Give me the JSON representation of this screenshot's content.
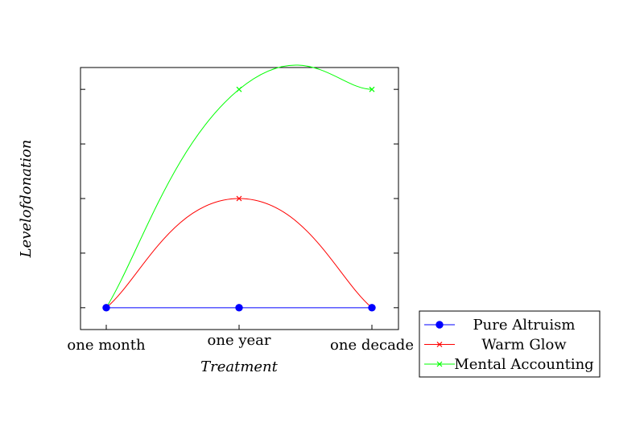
{
  "chart_data": {
    "type": "line",
    "title": "",
    "xlabel": "Treatment",
    "ylabel": "Levelofdonation",
    "categories": [
      "one month",
      "one year",
      "one decade"
    ],
    "ylim": [
      -0.4,
      4.4
    ],
    "y_ticks": [
      0,
      1,
      2,
      3,
      4
    ],
    "y_tick_labels_shown": false,
    "grid": false,
    "legend_position": "outside-bottom-right",
    "series": [
      {
        "name": "Pure Altruism",
        "values": [
          0,
          0,
          0
        ],
        "color": "#0000ff",
        "marker": "circle",
        "smooth": false
      },
      {
        "name": "Warm Glow",
        "values": [
          0,
          2,
          0
        ],
        "color": "#ff0000",
        "marker": "cross",
        "smooth": true
      },
      {
        "name": "Mental Accounting",
        "values": [
          0,
          4,
          4
        ],
        "color": "#00ff00",
        "marker": "cross",
        "smooth": true
      }
    ]
  }
}
